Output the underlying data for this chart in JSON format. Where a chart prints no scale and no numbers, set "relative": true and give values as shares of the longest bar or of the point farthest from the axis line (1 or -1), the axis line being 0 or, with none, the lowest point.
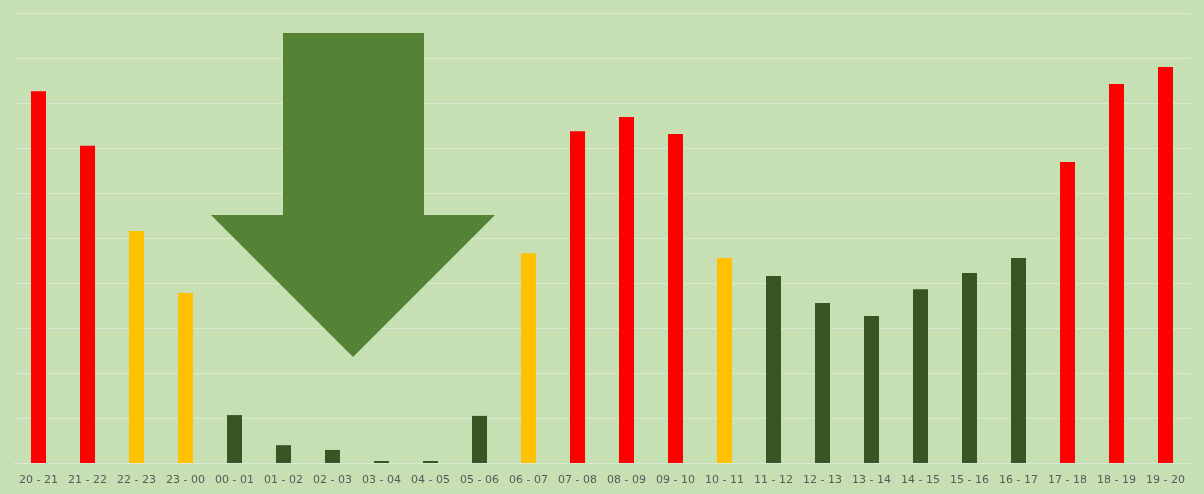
{
  "chart_data": {
    "type": "bar",
    "relative": true,
    "grid": "y",
    "categories": [
      "20 - 21",
      "21 - 22",
      "22 - 23",
      "23 - 00",
      "00 - 01",
      "01 - 02",
      "02 - 03",
      "03 - 04",
      "04 - 05",
      "05 - 06",
      "06 - 07",
      "07 - 08",
      "08 - 09",
      "09 - 10",
      "10 - 11",
      "11 - 12",
      "12 - 13",
      "13 - 14",
      "14 - 15",
      "15 - 16",
      "16 - 17",
      "17 - 18",
      "18 - 19",
      "19 - 20"
    ],
    "values": [
      0.939,
      0.801,
      0.586,
      0.429,
      0.121,
      0.045,
      0.033,
      0.005,
      0.005,
      0.119,
      0.53,
      0.838,
      0.874,
      0.831,
      0.518,
      0.472,
      0.404,
      0.371,
      0.439,
      0.48,
      0.518,
      0.76,
      0.957,
      1
    ],
    "colors": [
      "#ff0000",
      "#ff0000",
      "#ffc000",
      "#ffc000",
      "#375623",
      "#375623",
      "#375623",
      "#375623",
      "#375623",
      "#375623",
      "#ffc000",
      "#ff0000",
      "#ff0000",
      "#ff0000",
      "#ffc000",
      "#375623",
      "#375623",
      "#375623",
      "#375623",
      "#375623",
      "#375623",
      "#ff0000",
      "#ff0000",
      "#ff0000"
    ]
  }
}
